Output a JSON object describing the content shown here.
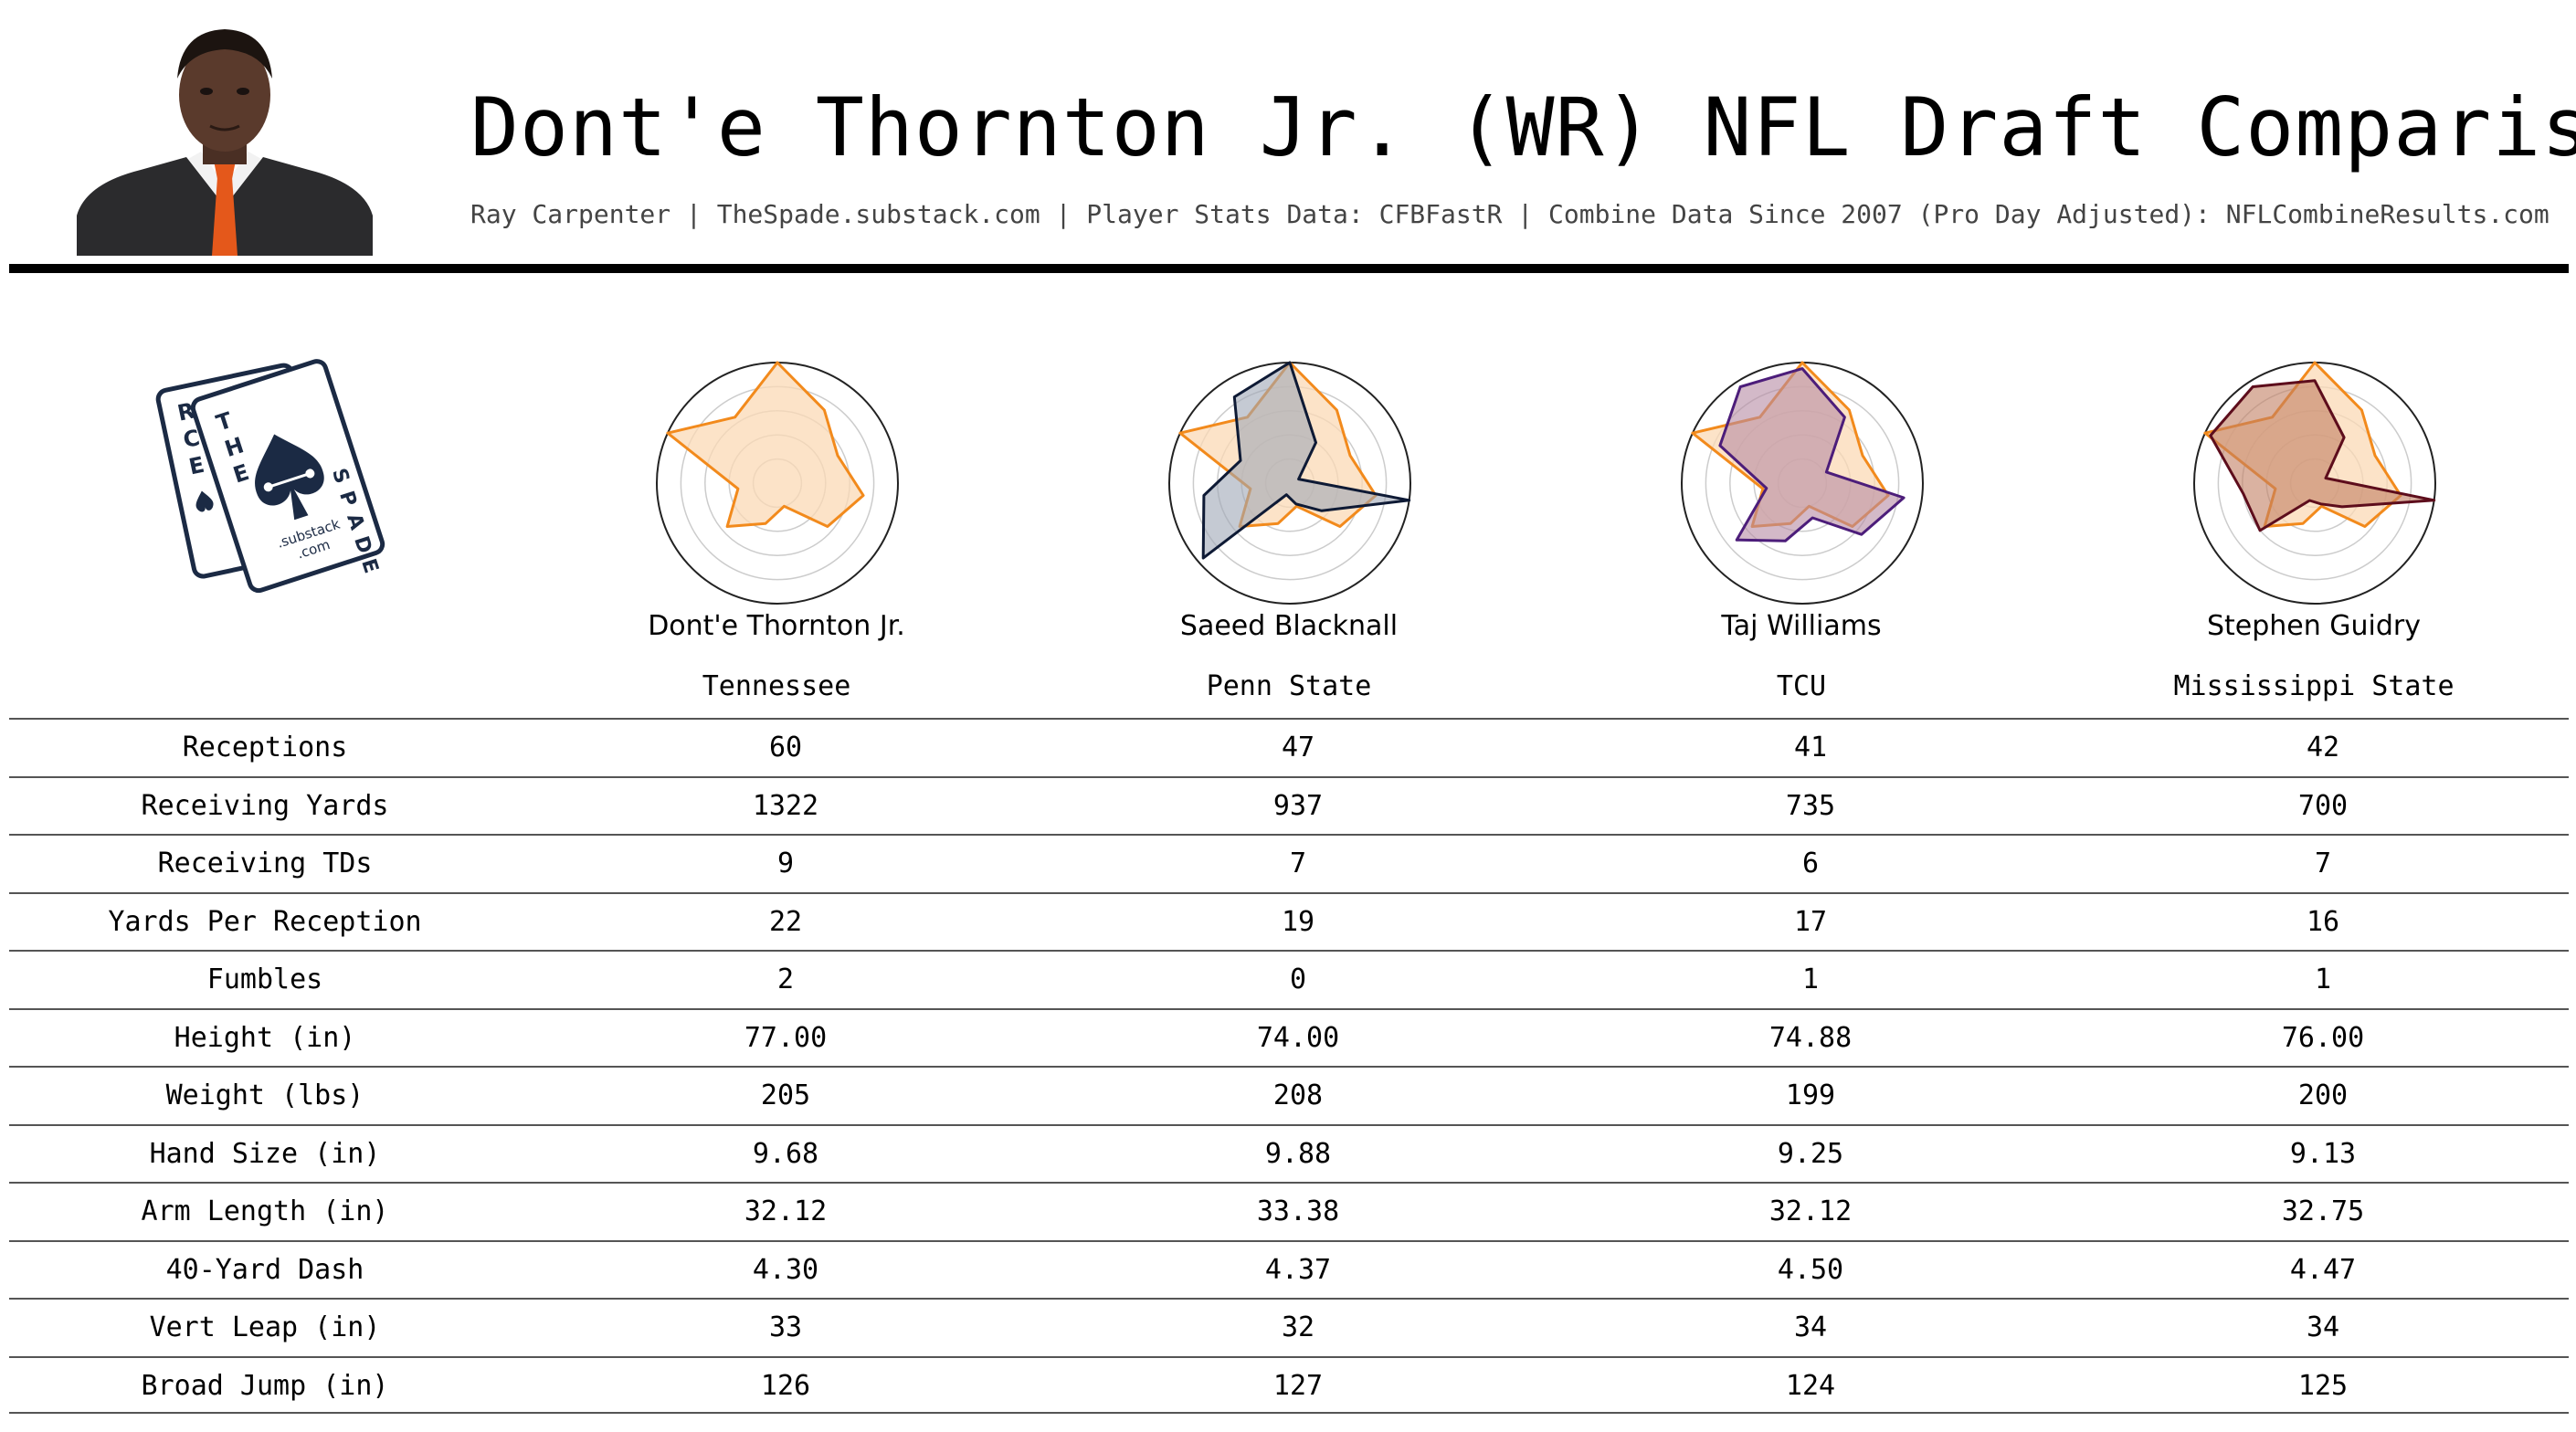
{
  "header": {
    "title": "Dont'e Thornton Jr. (WR) NFL Draft Comparison",
    "subtitle": "Ray Carpenter | TheSpade.substack.com | Player Stats Data: CFBFastR | Combine Data Since 2007 (Pro Day Adjusted): NFLCombineResults.com"
  },
  "logo": {
    "back_card_letters": [
      "R",
      "C",
      "E"
    ],
    "front_card_letters_left": [
      "T",
      "H",
      "E"
    ],
    "front_card_letters_right": [
      "S",
      "P",
      "A",
      "D",
      "E"
    ],
    "substack_line1": ".substack",
    "substack_line2": ".com",
    "color": "#1b2a44"
  },
  "colors": {
    "base_fill": "#fbd9b6",
    "base_stroke": "#f28a1c",
    "comparisons": [
      {
        "fill": "#9fa6b6",
        "stroke": "#0e1a35"
      },
      {
        "fill": "#b58aa4",
        "stroke": "#4c1d7a"
      },
      {
        "fill": "#c27e62",
        "stroke": "#5d0d1c"
      }
    ]
  },
  "chart_data": {
    "type": "radar",
    "axes_count": 11,
    "rlim": [
      0,
      1
    ],
    "grid": true,
    "base_player": "Dont'e Thornton Jr.",
    "series": [
      {
        "name": "Dont'e Thornton Jr.",
        "values": [
          1.0,
          0.72,
          0.55,
          0.72,
          0.55,
          0.2,
          0.35,
          0.55,
          0.33,
          1.0,
          0.65
        ]
      },
      {
        "name": "Saeed Blacknall",
        "values": [
          1.0,
          0.4,
          0.08,
          1.0,
          0.35,
          0.18,
          0.1,
          0.95,
          0.72,
          0.45,
          0.85
        ]
      },
      {
        "name": "Taj Williams",
        "values": [
          0.95,
          0.65,
          0.22,
          0.85,
          0.65,
          0.3,
          0.5,
          0.72,
          0.3,
          0.75,
          0.95
        ]
      },
      {
        "name": "Stephen Guidry",
        "values": [
          0.85,
          0.45,
          0.1,
          1.0,
          0.3,
          0.18,
          0.15,
          0.6,
          0.6,
          0.95,
          0.95
        ]
      }
    ]
  },
  "players": [
    {
      "name": "Dont'e Thornton Jr.",
      "school": "Tennessee"
    },
    {
      "name": "Saeed Blacknall",
      "school": "Penn State"
    },
    {
      "name": "Taj Williams",
      "school": "TCU"
    },
    {
      "name": "Stephen Guidry",
      "school": "Mississippi State"
    }
  ],
  "stats": [
    {
      "label": "Receptions",
      "values": [
        "60",
        "47",
        "41",
        "42"
      ]
    },
    {
      "label": "Receiving Yards",
      "values": [
        "1322",
        "937",
        "735",
        "700"
      ]
    },
    {
      "label": "Receiving TDs",
      "values": [
        "9",
        "7",
        "6",
        "7"
      ]
    },
    {
      "label": "Yards Per Reception",
      "values": [
        "22",
        "19",
        "17",
        "16"
      ]
    },
    {
      "label": "Fumbles",
      "values": [
        "2",
        "0",
        "1",
        "1"
      ]
    },
    {
      "label": "Height (in)",
      "values": [
        "77.00",
        "74.00",
        "74.88",
        "76.00"
      ]
    },
    {
      "label": "Weight (lbs)",
      "values": [
        "205",
        "208",
        "199",
        "200"
      ]
    },
    {
      "label": "Hand Size (in)",
      "values": [
        "9.68",
        "9.88",
        "9.25",
        "9.13"
      ]
    },
    {
      "label": "Arm Length (in)",
      "values": [
        "32.12",
        "33.38",
        "32.12",
        "32.75"
      ]
    },
    {
      "label": "40-Yard Dash",
      "values": [
        "4.30",
        "4.37",
        "4.50",
        "4.47"
      ]
    },
    {
      "label": "Vert Leap (in)",
      "values": [
        "33",
        "32",
        "34",
        "34"
      ]
    },
    {
      "label": "Broad Jump (in)",
      "values": [
        "126",
        "127",
        "124",
        "125"
      ]
    }
  ]
}
